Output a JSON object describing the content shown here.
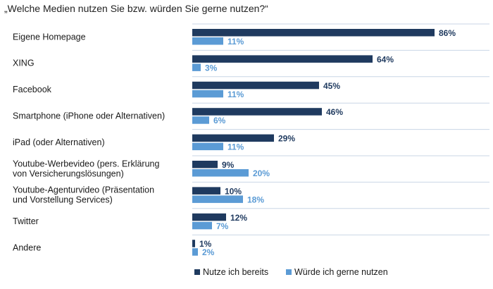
{
  "chart_data": {
    "type": "bar",
    "orientation": "horizontal",
    "title": "„Welche Medien nutzen Sie bzw. würden Sie gerne nutzen?“",
    "categories": [
      [
        "Eigene Homepage"
      ],
      [
        "XING"
      ],
      [
        "Facebook"
      ],
      [
        "Smartphone (iPhone oder Alternativen)"
      ],
      [
        "iPad (oder Alternativen)"
      ],
      [
        "Youtube-Werbevideo (pers. Erklärung",
        "von Versicherungslösungen)"
      ],
      [
        "Youtube-Agenturvideo (Präsentation",
        "und Vorstellung Services)"
      ],
      [
        "Twitter"
      ],
      [
        "Andere"
      ]
    ],
    "series": [
      {
        "name": "Nutze ich bereits",
        "color": "#1f3a5f",
        "values": [
          86,
          64,
          45,
          46,
          29,
          9,
          10,
          12,
          1
        ]
      },
      {
        "name": "Würde ich gerne nutzen",
        "color": "#5b9bd5",
        "values": [
          11,
          3,
          11,
          6,
          11,
          20,
          18,
          7,
          2
        ]
      }
    ],
    "value_suffix": "%",
    "xlim": [
      0,
      100
    ],
    "grid": false,
    "legend_position": "bottom"
  }
}
